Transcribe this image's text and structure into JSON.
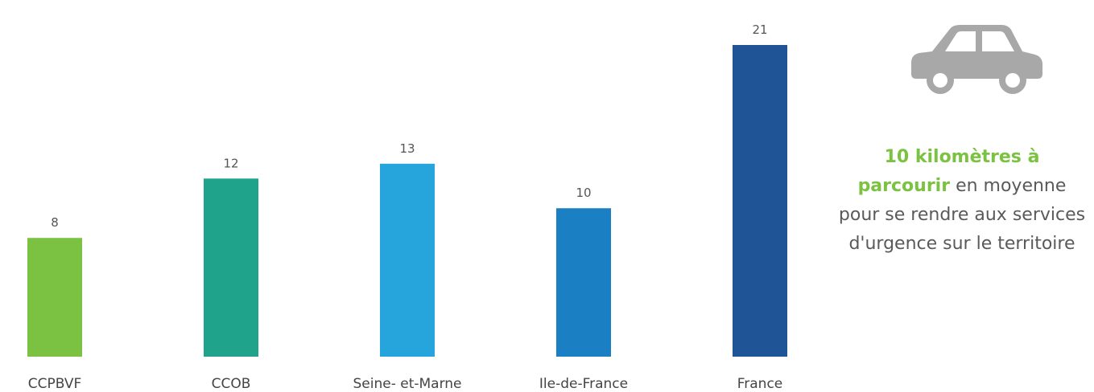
{
  "chart_data": {
    "type": "bar",
    "categories": [
      "CCPBVF",
      "CCOB",
      "Seine- et-Marne",
      "Ile-de-France",
      "France"
    ],
    "values": [
      8,
      12,
      13,
      10,
      21
    ],
    "title": "",
    "xlabel": "",
    "ylabel": "",
    "ylim": [
      0,
      21
    ],
    "grid": false,
    "colors": [
      "#7cc242",
      "#1fa38b",
      "#25a5dc",
      "#1b7fc4",
      "#1f5497"
    ]
  },
  "side_panel": {
    "icon": "car-icon",
    "icon_color": "#a8a8a8",
    "highlight_text": "10 kilomètres à parcourir",
    "highlight_color": "#7cc242",
    "body_text": " en moyenne pour se rendre aux services d'urgence sur le territoire"
  }
}
